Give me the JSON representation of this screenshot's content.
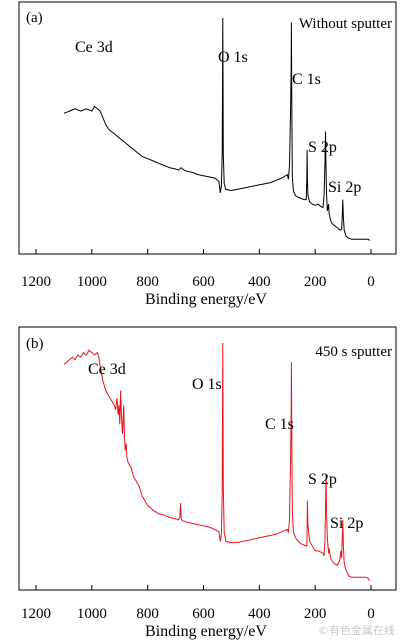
{
  "watermark": "©有色金属在线",
  "chart_data": [
    {
      "type": "line",
      "panel_label": "(a)",
      "condition": "Without sputter",
      "xlabel": "Binding energy/eV",
      "ylabel": "",
      "xlim": [
        1200,
        0
      ],
      "x_reversed": true,
      "xticks": [
        1200,
        1000,
        800,
        600,
        400,
        200,
        0
      ],
      "ylim": [
        0,
        100
      ],
      "grid": false,
      "legend": "none",
      "color": "#000000",
      "peaks": [
        {
          "label": "Ce 3d",
          "x": 900,
          "y": 88
        },
        {
          "label": "O 1s",
          "x": 531,
          "y": 80
        },
        {
          "label": "C 1s",
          "x": 285,
          "y": 71
        },
        {
          "label": "S 2p",
          "x": 163,
          "y": 42
        },
        {
          "label": "Si 2p",
          "x": 103,
          "y": 22
        }
      ],
      "series": [
        {
          "x": [
            1100,
            1080,
            1060,
            1040,
            1020,
            1000,
            990,
            980,
            970,
            960,
            950,
            940,
            920,
            900,
            880,
            860,
            840,
            820,
            800,
            780,
            760,
            740,
            720,
            700,
            690,
            680,
            670,
            660,
            640,
            620,
            600,
            580,
            560,
            545,
            540,
            536,
            533,
            531,
            529,
            526,
            520,
            500,
            480,
            460,
            440,
            420,
            400,
            380,
            360,
            340,
            320,
            300,
            296,
            292,
            288,
            286,
            285,
            284,
            282,
            278,
            272,
            268,
            260,
            250,
            240,
            232,
            230,
            229,
            228,
            226,
            220,
            210,
            200,
            190,
            180,
            172,
            168,
            165,
            163,
            161,
            159,
            156,
            152,
            150,
            145,
            140,
            130,
            120,
            110,
            105,
            103,
            101,
            99,
            96,
            90,
            80,
            70,
            60,
            50,
            40,
            30,
            20,
            10,
            5
          ],
          "y": [
            58,
            59,
            60,
            59,
            60,
            59,
            61,
            60,
            59,
            56,
            53,
            51,
            49,
            47,
            45,
            43,
            41,
            39,
            38,
            37,
            36,
            35,
            34,
            33.5,
            33,
            34,
            33,
            32.5,
            32,
            31,
            30.5,
            30,
            29.5,
            28,
            23,
            26,
            40,
            100,
            40,
            27,
            24.5,
            24,
            24.5,
            25,
            25.5,
            26,
            26.5,
            27,
            27.5,
            28.5,
            29.5,
            31,
            29,
            35,
            60,
            80,
            98,
            70,
            30,
            24,
            22,
            21.5,
            21,
            20.5,
            20,
            20,
            28,
            42,
            30,
            22,
            19,
            18,
            17.5,
            18,
            17,
            16.5,
            22,
            35,
            50,
            32,
            22,
            15,
            18,
            14,
            11,
            9.5,
            8.5,
            7.5,
            6.5,
            7,
            12,
            20,
            12,
            6.5,
            4,
            3,
            2.5,
            2.5,
            2.5,
            2.5,
            2.5,
            2.5,
            2.5,
            2
          ]
        }
      ]
    },
    {
      "type": "line",
      "panel_label": "(b)",
      "condition": "450 s sputter",
      "xlabel": "Binding energy/eV",
      "ylabel": "",
      "xlim": [
        1200,
        0
      ],
      "x_reversed": true,
      "xticks": [
        1200,
        1000,
        800,
        600,
        400,
        200,
        0
      ],
      "ylim": [
        0,
        100
      ],
      "grid": false,
      "legend": "none",
      "color": "#e8141c",
      "peaks": [
        {
          "label": "Ce 3d",
          "x": 890,
          "y": 88
        },
        {
          "label": "O 1s",
          "x": 531,
          "y": 80
        },
        {
          "label": "C 1s",
          "x": 285,
          "y": 65
        },
        {
          "label": "S 2p",
          "x": 163,
          "y": 44
        },
        {
          "label": "Si 2p",
          "x": 103,
          "y": 28
        }
      ],
      "series": [
        {
          "x": [
            1100,
            1090,
            1080,
            1070,
            1060,
            1050,
            1040,
            1030,
            1020,
            1010,
            1000,
            990,
            980,
            975,
            970,
            960,
            950,
            940,
            930,
            920,
            915,
            910,
            906,
            903,
            900,
            897,
            894,
            890,
            886,
            883,
            880,
            877,
            874,
            870,
            860,
            850,
            840,
            830,
            820,
            810,
            800,
            790,
            780,
            760,
            740,
            720,
            700,
            690,
            685,
            682,
            680,
            678,
            675,
            670,
            660,
            640,
            620,
            600,
            580,
            560,
            545,
            540,
            536,
            533,
            531,
            529,
            526,
            520,
            500,
            480,
            460,
            440,
            420,
            400,
            380,
            360,
            340,
            320,
            300,
            296,
            292,
            288,
            286,
            285,
            284,
            282,
            278,
            272,
            268,
            260,
            250,
            240,
            232,
            230,
            229,
            228,
            226,
            220,
            210,
            200,
            190,
            180,
            172,
            168,
            165,
            163,
            161,
            159,
            156,
            152,
            150,
            145,
            140,
            130,
            120,
            112,
            108,
            105,
            103,
            101,
            99,
            96,
            90,
            80,
            70,
            60,
            50,
            40,
            30,
            20,
            10,
            5
          ],
          "y": [
            91,
            92,
            93,
            94,
            93,
            95,
            94,
            96,
            95,
            97,
            96,
            95,
            96,
            94,
            90,
            84,
            80,
            78,
            76,
            74,
            72,
            77,
            70,
            74,
            66,
            80,
            70,
            62,
            74,
            60,
            55,
            58,
            52,
            50,
            48,
            44,
            42,
            40,
            36,
            34,
            32,
            31,
            30,
            28.5,
            28,
            27,
            26.5,
            26,
            27,
            33,
            27,
            26,
            25.5,
            25.5,
            25,
            24.5,
            24,
            23.5,
            23,
            22,
            21,
            17,
            20,
            36,
            100,
            40,
            21,
            17,
            16.5,
            16.5,
            17,
            17.5,
            18,
            18.5,
            19,
            19.5,
            20,
            21,
            22,
            21,
            26,
            52,
            72,
            92,
            68,
            30,
            21,
            19,
            18,
            17,
            16,
            15.5,
            15,
            15,
            22,
            34,
            24,
            17,
            15,
            13,
            13,
            12.5,
            12,
            11,
            17,
            30,
            45,
            28,
            18,
            12,
            14,
            10,
            9,
            7.5,
            7,
            9,
            13,
            10,
            18,
            26,
            15,
            8,
            5,
            2.5,
            2,
            2,
            2,
            2,
            2,
            2,
            1.5,
            0.5
          ]
        }
      ]
    }
  ]
}
